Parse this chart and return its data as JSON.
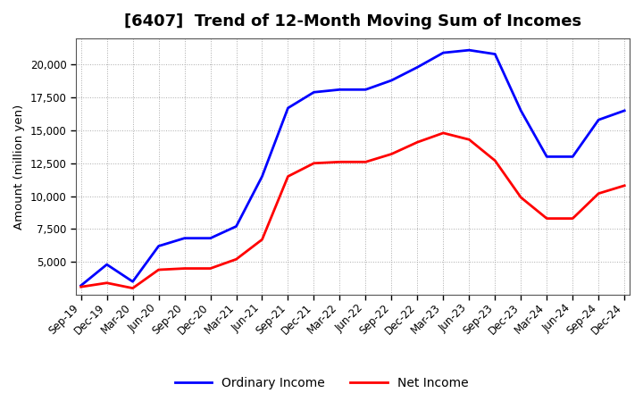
{
  "title": "[6407]  Trend of 12-Month Moving Sum of Incomes",
  "ylabel": "Amount (million yen)",
  "x_labels": [
    "Sep-19",
    "Dec-19",
    "Mar-20",
    "Jun-20",
    "Sep-20",
    "Dec-20",
    "Mar-21",
    "Jun-21",
    "Sep-21",
    "Dec-21",
    "Mar-22",
    "Jun-22",
    "Sep-22",
    "Dec-22",
    "Mar-23",
    "Jun-23",
    "Sep-23",
    "Dec-23",
    "Mar-24",
    "Jun-24",
    "Sep-24",
    "Dec-24"
  ],
  "ordinary_income": [
    3200,
    4800,
    3500,
    6200,
    6800,
    6800,
    7700,
    11500,
    16700,
    17900,
    18100,
    18100,
    18800,
    19800,
    20900,
    21100,
    20800,
    16500,
    13000,
    13000,
    15800,
    16500
  ],
  "net_income": [
    3100,
    3400,
    3000,
    4400,
    4500,
    4500,
    5200,
    6700,
    11500,
    12500,
    12600,
    12600,
    13200,
    14100,
    14800,
    14300,
    12700,
    9900,
    8300,
    8300,
    10200,
    10800
  ],
  "ordinary_color": "#0000ff",
  "net_color": "#ff0000",
  "background_color": "#ffffff",
  "plot_bg_color": "#ffffff",
  "grid_color": "#aaaaaa",
  "ylim": [
    2500,
    22000
  ],
  "yticks": [
    5000,
    7500,
    10000,
    12500,
    15000,
    17500,
    20000
  ],
  "legend_labels": [
    "Ordinary Income",
    "Net Income"
  ]
}
